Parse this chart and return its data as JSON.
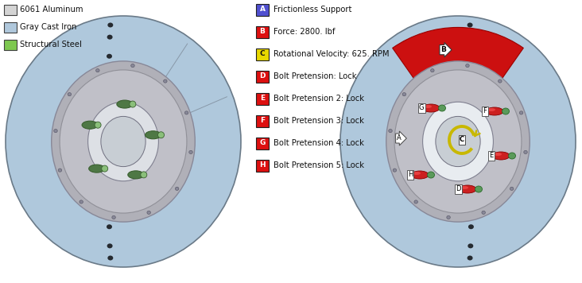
{
  "fig_width": 7.32,
  "fig_height": 3.56,
  "bg_color": "#ffffff",
  "material_legend": [
    {
      "label": "6061 Aluminum",
      "color": "#d4d4d4"
    },
    {
      "label": "Gray Cast Iron",
      "color": "#b0c8dc"
    },
    {
      "label": "Structural Steel",
      "color": "#7ec850"
    }
  ],
  "load_legend": [
    {
      "letter": "A",
      "color": "#5050d0",
      "text": "Frictionless Support"
    },
    {
      "letter": "B",
      "color": "#dd1010",
      "text": "Force: 2800. lbf"
    },
    {
      "letter": "C",
      "color": "#e8d800",
      "text": "Rotational Velocity: 625. RPM"
    },
    {
      "letter": "D",
      "color": "#dd1010",
      "text": "Bolt Pretension: Lock"
    },
    {
      "letter": "E",
      "color": "#dd1010",
      "text": "Bolt Pretension 2: Lock"
    },
    {
      "letter": "F",
      "color": "#dd1010",
      "text": "Bolt Pretension 3: Lock"
    },
    {
      "letter": "G",
      "color": "#dd1010",
      "text": "Bolt Pretension 4: Lock"
    },
    {
      "letter": "H",
      "color": "#dd1010",
      "text": "Bolt Pretension 5: Lock"
    }
  ],
  "rotor_face_color": "#afc8dc",
  "rotor_edge_dark": "#3a4a58",
  "rotor_edge_mid": "#7a90a4",
  "hub_plate_color": "#c0c0c8",
  "hub_inner_color": "#d0d5da",
  "stud_dark": "#3a6030",
  "stud_mid": "#4e7845",
  "stud_tip": "#8abf7a",
  "red_sector_color": "#cc1010",
  "bolt_red": "#cc2020",
  "bolt_green": "#5a9a5a",
  "yellow_arc": "#c8b800"
}
